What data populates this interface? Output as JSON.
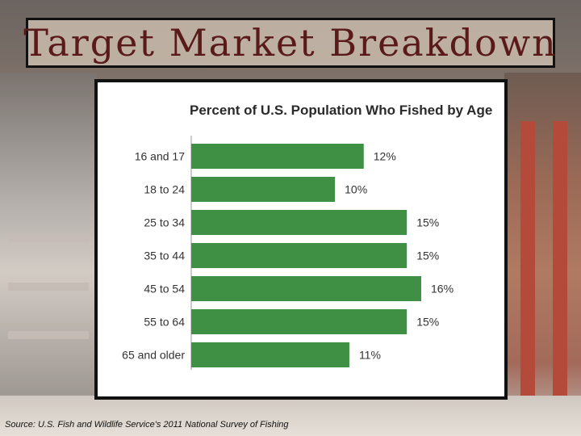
{
  "slide": {
    "title": "Target Market Breakdown",
    "source": "Source: U.S. Fish and Wildlife Service's 2011 National Survey of Fishing"
  },
  "chart_data": {
    "type": "bar",
    "orientation": "horizontal",
    "title": "Percent of U.S. Population Who Fished by Age",
    "categories": [
      "16 and 17",
      "18 to 24",
      "25 to 34",
      "35 to 44",
      "45 to 54",
      "55 to 64",
      "65 and older"
    ],
    "values": [
      12,
      10,
      15,
      15,
      16,
      15,
      11
    ],
    "value_labels": [
      "12%",
      "10%",
      "15%",
      "15%",
      "16%",
      "15%",
      "11%"
    ],
    "xlim": [
      0,
      16
    ],
    "bar_color": "#3f8f45",
    "grid": false,
    "legend": "none"
  }
}
